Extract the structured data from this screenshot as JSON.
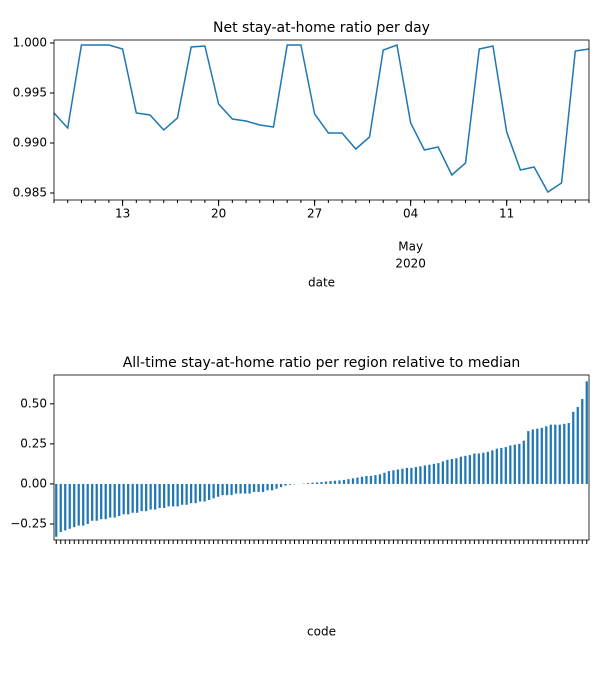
{
  "chart_data": [
    {
      "type": "line",
      "title": "Net stay-at-home ratio per day",
      "xlabel": "date",
      "x_sublabel": [
        "May",
        "2020"
      ],
      "color": "#1f77b4",
      "x": [
        0,
        1,
        2,
        3,
        4,
        5,
        6,
        7,
        8,
        9,
        10,
        11,
        12,
        13,
        14,
        15,
        16,
        17,
        18,
        19,
        20,
        21,
        22,
        23,
        24,
        25,
        26,
        27,
        28,
        29,
        30,
        31,
        32,
        33,
        34,
        35,
        36,
        37,
        38,
        39
      ],
      "values": [
        0.993,
        0.9915,
        0.9998,
        0.9998,
        0.9998,
        0.9994,
        0.993,
        0.9928,
        0.9913,
        0.9925,
        0.9996,
        0.9997,
        0.9939,
        0.9924,
        0.9922,
        0.9918,
        0.9916,
        0.9998,
        0.9998,
        0.9929,
        0.991,
        0.991,
        0.9894,
        0.9906,
        0.9993,
        0.9998,
        0.992,
        0.9893,
        0.9896,
        0.9868,
        0.988,
        0.9994,
        0.9997,
        0.9911,
        0.9873,
        0.9876,
        0.9851,
        0.986,
        0.9992,
        0.9994
      ],
      "xlim": [
        0,
        39
      ],
      "xticks": [
        {
          "value": 5,
          "label": "13"
        },
        {
          "value": 12,
          "label": "20"
        },
        {
          "value": 19,
          "label": "27"
        },
        {
          "value": 26,
          "label": "04"
        },
        {
          "value": 33,
          "label": "11"
        }
      ],
      "ylim": [
        0.9843,
        1.0003
      ],
      "yticks": [
        0.985,
        {
          "value": 0.99,
          "label": "0.990"
        },
        0.995,
        {
          "value": 1,
          "label": "1.000"
        }
      ]
    },
    {
      "type": "bar",
      "title": "All-time stay-at-home ratio per region relative to median",
      "xlabel": "code",
      "color": "#1f77b4",
      "categories": [
        null,
        null,
        null,
        null,
        null,
        null,
        null,
        null,
        null,
        null,
        null,
        null,
        null,
        null,
        null,
        null,
        null,
        null,
        null,
        null,
        null,
        null,
        null,
        null,
        null,
        null,
        null,
        null,
        null,
        null,
        null,
        null,
        null,
        null,
        null,
        null,
        null,
        null,
        null,
        null,
        null,
        null,
        null,
        null,
        null,
        null,
        null,
        null,
        null,
        null,
        null,
        null,
        null,
        null,
        null,
        null,
        null,
        null,
        null,
        null,
        null,
        null,
        null,
        null,
        null,
        null,
        null,
        null,
        null,
        null,
        null,
        null,
        null,
        null,
        null,
        null,
        null,
        null,
        null,
        null,
        null,
        null,
        null,
        null,
        null,
        null,
        null,
        null,
        null,
        null,
        null,
        null,
        null,
        null,
        null,
        null,
        null,
        null,
        null,
        null,
        null,
        null,
        null,
        null,
        null,
        null,
        null,
        null,
        null,
        null,
        null,
        null,
        null,
        null,
        null,
        null,
        null,
        null,
        null
      ],
      "values": [
        -0.33,
        -0.3,
        -0.29,
        -0.28,
        -0.27,
        -0.26,
        -0.26,
        -0.25,
        -0.23,
        -0.23,
        -0.22,
        -0.22,
        -0.21,
        -0.21,
        -0.2,
        -0.19,
        -0.19,
        -0.18,
        -0.18,
        -0.17,
        -0.17,
        -0.16,
        -0.16,
        -0.15,
        -0.15,
        -0.14,
        -0.14,
        -0.14,
        -0.13,
        -0.13,
        -0.12,
        -0.12,
        -0.11,
        -0.11,
        -0.1,
        -0.09,
        -0.08,
        -0.07,
        -0.07,
        -0.07,
        -0.06,
        -0.06,
        -0.06,
        -0.06,
        -0.05,
        -0.05,
        -0.05,
        -0.04,
        -0.04,
        -0.03,
        -0.02,
        -0.01,
        -0.005,
        -0.002,
        0.0,
        0.002,
        0.005,
        0.008,
        0.01,
        0.012,
        0.015,
        0.018,
        0.02,
        0.022,
        0.025,
        0.03,
        0.035,
        0.04,
        0.045,
        0.05,
        0.05,
        0.055,
        0.06,
        0.07,
        0.08,
        0.085,
        0.09,
        0.095,
        0.1,
        0.1,
        0.105,
        0.11,
        0.115,
        0.12,
        0.125,
        0.13,
        0.14,
        0.15,
        0.155,
        0.16,
        0.17,
        0.175,
        0.18,
        0.19,
        0.19,
        0.195,
        0.2,
        0.21,
        0.22,
        0.225,
        0.23,
        0.24,
        0.245,
        0.25,
        0.27,
        0.33,
        0.34,
        0.345,
        0.35,
        0.36,
        0.37,
        0.37,
        0.37,
        0.375,
        0.38,
        0.45,
        0.48,
        0.53,
        0.64
      ],
      "ylim": [
        -0.35,
        0.68
      ],
      "yticks": [
        {
          "value": -0.25,
          "label": "−0.25"
        },
        {
          "value": 0,
          "label": "0.00"
        },
        0.25,
        {
          "value": 0.5,
          "label": "0.50"
        }
      ]
    }
  ]
}
